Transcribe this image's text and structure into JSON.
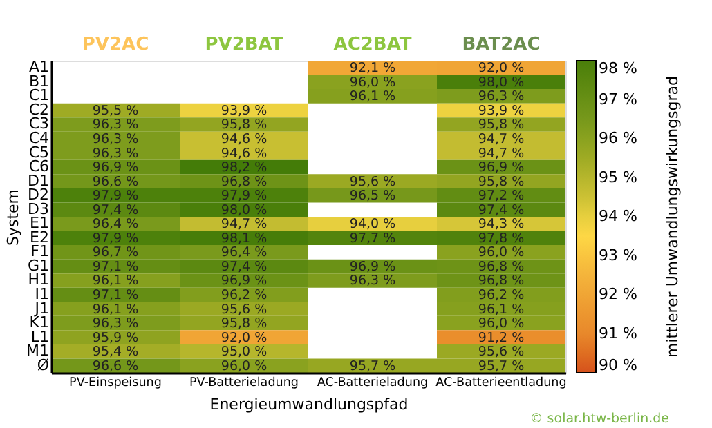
{
  "chart_data": {
    "type": "heatmap",
    "xlabel": "Energieumwandlungspfad",
    "ylabel": "System",
    "clabel": "mittlerer Umwandlungswirkungsgrad",
    "categories": [
      "PV-Einspeisung",
      "PV-Batterieladung",
      "AC-Batterieladung",
      "AC-Batterieentladung"
    ],
    "y_categories": [
      "A1",
      "B1",
      "C1",
      "C2",
      "C3",
      "C4",
      "C5",
      "C6",
      "D1",
      "D2",
      "D3",
      "E1",
      "E2",
      "F1",
      "G1",
      "H1",
      "I1",
      "J1",
      "K1",
      "L1",
      "M1",
      "Ø"
    ],
    "cells": [
      [
        null,
        null,
        92.1,
        92.0
      ],
      [
        null,
        null,
        96.0,
        98.0
      ],
      [
        null,
        null,
        96.1,
        96.3
      ],
      [
        95.5,
        93.9,
        null,
        93.9
      ],
      [
        96.3,
        95.8,
        null,
        95.8
      ],
      [
        96.3,
        94.6,
        null,
        94.7
      ],
      [
        96.3,
        94.6,
        null,
        94.7
      ],
      [
        96.9,
        98.2,
        null,
        96.9
      ],
      [
        96.6,
        96.8,
        95.6,
        95.8
      ],
      [
        97.9,
        97.9,
        96.5,
        97.2
      ],
      [
        97.4,
        98.0,
        null,
        97.4
      ],
      [
        96.4,
        94.7,
        94.0,
        94.3
      ],
      [
        97.9,
        98.1,
        97.7,
        97.8
      ],
      [
        96.7,
        96.4,
        null,
        96.0
      ],
      [
        97.1,
        97.4,
        96.9,
        96.8
      ],
      [
        96.1,
        96.9,
        96.3,
        96.8
      ],
      [
        97.1,
        96.2,
        null,
        96.2
      ],
      [
        96.1,
        95.6,
        null,
        96.1
      ],
      [
        96.3,
        95.8,
        null,
        96.0
      ],
      [
        95.9,
        92.0,
        null,
        91.2
      ],
      [
        95.4,
        95.0,
        null,
        95.6
      ],
      [
        96.6,
        96.0,
        95.7,
        95.7
      ]
    ],
    "cell_labels": [
      [
        null,
        null,
        "92,1 %",
        "92,0 %"
      ],
      [
        null,
        null,
        "96,0 %",
        "98,0 %"
      ],
      [
        null,
        null,
        "96,1 %",
        "96,3 %"
      ],
      [
        "95,5 %",
        "93,9 %",
        null,
        "93,9 %"
      ],
      [
        "96,3 %",
        "95,8 %",
        null,
        "95,8 %"
      ],
      [
        "96,3 %",
        "94,6 %",
        null,
        "94,7 %"
      ],
      [
        "96,3 %",
        "94,6 %",
        null,
        "94,7 %"
      ],
      [
        "96,9 %",
        "98,2 %",
        null,
        "96,9 %"
      ],
      [
        "96,6 %",
        "96,8 %",
        "95,6 %",
        "95,8 %"
      ],
      [
        "97,9 %",
        "97,9 %",
        "96,5 %",
        "97,2 %"
      ],
      [
        "97,4 %",
        "98,0 %",
        null,
        "97,4 %"
      ],
      [
        "96,4 %",
        "94,7 %",
        "94,0 %",
        "94,3 %"
      ],
      [
        "97,9 %",
        "98,1 %",
        "97,7 %",
        "97,8 %"
      ],
      [
        "96,7 %",
        "96,4 %",
        null,
        "96,0 %"
      ],
      [
        "97,1 %",
        "97,4 %",
        "96,9 %",
        "96,8 %"
      ],
      [
        "96,1 %",
        "96,9 %",
        "96,3 %",
        "96,8 %"
      ],
      [
        "97,1 %",
        "96,2 %",
        null,
        "96,2 %"
      ],
      [
        "96,1 %",
        "95,6 %",
        null,
        "96,1 %"
      ],
      [
        "96,3 %",
        "95,8 %",
        null,
        "96,0 %"
      ],
      [
        "95,9 %",
        "92,0 %",
        null,
        "91,2 %"
      ],
      [
        "95,4 %",
        "95,0 %",
        null,
        "95,6 %"
      ],
      [
        "96,6 %",
        "96,0 %",
        "95,7 %",
        "95,7 %"
      ]
    ],
    "clim": [
      90,
      98
    ],
    "cticks": [
      {
        "value": 90,
        "label": "90 %"
      },
      {
        "value": 91,
        "label": "91 %"
      },
      {
        "value": 92,
        "label": "92 %"
      },
      {
        "value": 93,
        "label": "93 %"
      },
      {
        "value": 94,
        "label": "94 %"
      },
      {
        "value": 95,
        "label": "95 %"
      },
      {
        "value": 96,
        "label": "96 %"
      },
      {
        "value": 97,
        "label": "97 %"
      },
      {
        "value": 98,
        "label": "98 %"
      }
    ],
    "annotations": [
      "PV2AC",
      "PV2BAT",
      "AC2BAT",
      "BAT2AC",
      "© solar.htw-berlin.de"
    ]
  }
}
